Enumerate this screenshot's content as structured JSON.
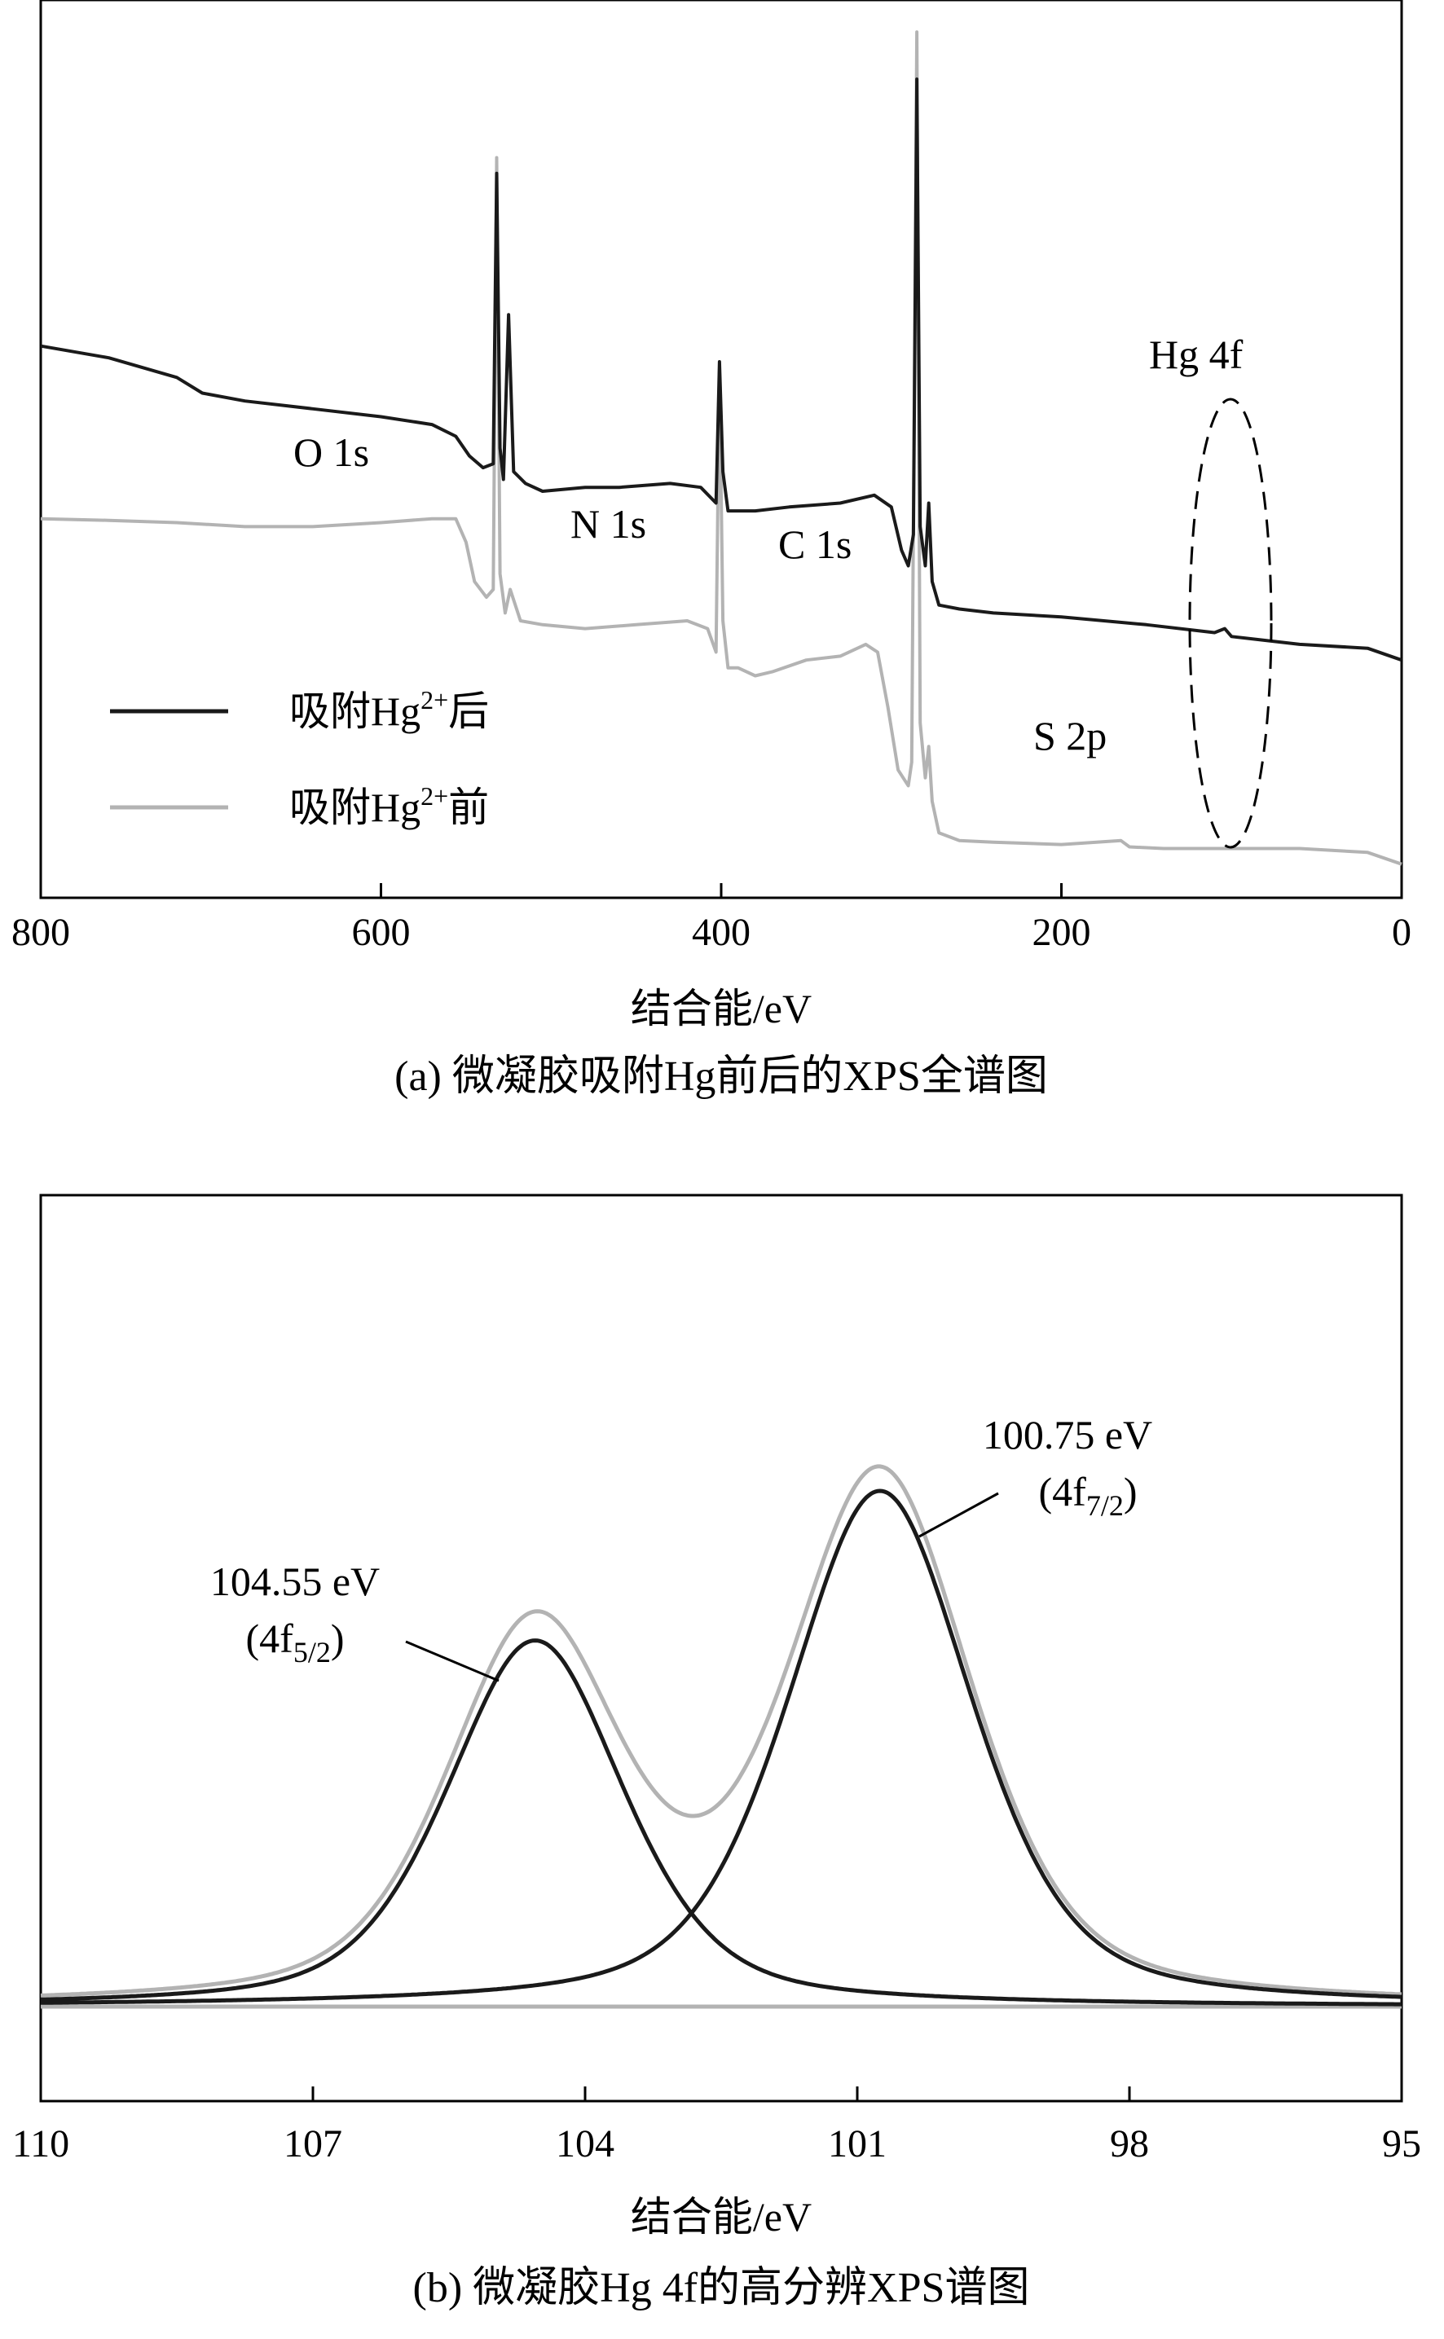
{
  "chart_data": [
    {
      "type": "line",
      "caption": "(a) 微凝胶吸附Hg前后的XPS全谱图",
      "xlabel": "结合能/eV",
      "ylabel": "",
      "xlim": [
        800,
        0
      ],
      "x_reversed": true,
      "xticks": [
        800,
        600,
        400,
        200,
        0
      ],
      "y_ticks_shown": false,
      "legend_placement": "left",
      "series": [
        {
          "name": "吸附Hg²⁺后",
          "color": "#1a1a1a",
          "points": [
            [
              800,
              0.68
            ],
            [
              760,
              0.665
            ],
            [
              720,
              0.64
            ],
            [
              705,
              0.62
            ],
            [
              680,
              0.61
            ],
            [
              640,
              0.6
            ],
            [
              600,
              0.59
            ],
            [
              570,
              0.58
            ],
            [
              556,
              0.565
            ],
            [
              548,
              0.54
            ],
            [
              540,
              0.525
            ],
            [
              534,
              0.53
            ],
            [
              532,
              0.9
            ],
            [
              530,
              0.55
            ],
            [
              528,
              0.51
            ],
            [
              525,
              0.72
            ],
            [
              522,
              0.52
            ],
            [
              515,
              0.505
            ],
            [
              505,
              0.495
            ],
            [
              480,
              0.5
            ],
            [
              460,
              0.5
            ],
            [
              430,
              0.505
            ],
            [
              412,
              0.5
            ],
            [
              403,
              0.48
            ],
            [
              401,
              0.66
            ],
            [
              399,
              0.52
            ],
            [
              396,
              0.47
            ],
            [
              380,
              0.47
            ],
            [
              360,
              0.475
            ],
            [
              330,
              0.48
            ],
            [
              310,
              0.49
            ],
            [
              300,
              0.475
            ],
            [
              294,
              0.42
            ],
            [
              290,
              0.4
            ],
            [
              287,
              0.44
            ],
            [
              285,
              1.02
            ],
            [
              283,
              0.45
            ],
            [
              280,
              0.4
            ],
            [
              278,
              0.48
            ],
            [
              276,
              0.38
            ],
            [
              272,
              0.35
            ],
            [
              260,
              0.345
            ],
            [
              240,
              0.34
            ],
            [
              200,
              0.335
            ],
            [
              150,
              0.325
            ],
            [
              110,
              0.315
            ],
            [
              104,
              0.32
            ],
            [
              100,
              0.31
            ],
            [
              60,
              0.3
            ],
            [
              20,
              0.295
            ],
            [
              0,
              0.28
            ]
          ]
        },
        {
          "name": "吸附Hg²⁺前",
          "color": "#b3b3b3",
          "points": [
            [
              800,
              0.46
            ],
            [
              760,
              0.458
            ],
            [
              720,
              0.455
            ],
            [
              680,
              0.45
            ],
            [
              640,
              0.45
            ],
            [
              600,
              0.455
            ],
            [
              570,
              0.46
            ],
            [
              556,
              0.46
            ],
            [
              550,
              0.43
            ],
            [
              545,
              0.38
            ],
            [
              538,
              0.36
            ],
            [
              534,
              0.37
            ],
            [
              532,
              0.92
            ],
            [
              530,
              0.39
            ],
            [
              527,
              0.34
            ],
            [
              524,
              0.37
            ],
            [
              518,
              0.33
            ],
            [
              505,
              0.325
            ],
            [
              480,
              0.32
            ],
            [
              450,
              0.325
            ],
            [
              420,
              0.33
            ],
            [
              408,
              0.32
            ],
            [
              403,
              0.29
            ],
            [
              401,
              0.65
            ],
            [
              399,
              0.33
            ],
            [
              396,
              0.27
            ],
            [
              390,
              0.27
            ],
            [
              380,
              0.26
            ],
            [
              370,
              0.265
            ],
            [
              350,
              0.28
            ],
            [
              330,
              0.285
            ],
            [
              315,
              0.3
            ],
            [
              308,
              0.29
            ],
            [
              302,
              0.22
            ],
            [
              296,
              0.14
            ],
            [
              290,
              0.12
            ],
            [
              288,
              0.15
            ],
            [
              285,
              1.08
            ],
            [
              283,
              0.2
            ],
            [
              280,
              0.13
            ],
            [
              278,
              0.17
            ],
            [
              276,
              0.1
            ],
            [
              272,
              0.06
            ],
            [
              260,
              0.05
            ],
            [
              240,
              0.048
            ],
            [
              200,
              0.045
            ],
            [
              165,
              0.05
            ],
            [
              160,
              0.042
            ],
            [
              140,
              0.04
            ],
            [
              100,
              0.04
            ],
            [
              60,
              0.04
            ],
            [
              20,
              0.035
            ],
            [
              0,
              0.02
            ]
          ]
        }
      ],
      "annotations": [
        {
          "text": "O 1s",
          "x": 590
        },
        {
          "text": "N 1s",
          "x": 430
        },
        {
          "text": "C 1s",
          "x": 325
        },
        {
          "text": "S 2p",
          "x": 200
        },
        {
          "text": "Hg 4f",
          "x": 103,
          "marker": "dashed-ellipse"
        }
      ]
    },
    {
      "type": "line",
      "caption": "(b) 微凝胶Hg 4f的高分辨XPS谱图",
      "xlabel": "结合能/eV",
      "ylabel": "",
      "xlim": [
        110,
        95
      ],
      "x_reversed": true,
      "xticks": [
        110,
        107,
        104,
        101,
        98,
        95
      ],
      "y_ticks_shown": false,
      "series": [
        {
          "name": "",
          "color": "#b3b3b3",
          "description_of_curve": "envelope",
          "components": [
            [
              104.55,
              0.72
            ],
            [
              100.75,
              1.0
            ]
          ],
          "baseline": 0.0
        },
        {
          "name": "",
          "color": "#1a1a1a",
          "component": true,
          "center": 104.55,
          "height": 0.71,
          "fwhm": 2.3
        },
        {
          "name": "",
          "color": "#1a1a1a",
          "component": true,
          "center": 100.75,
          "height": 1.0,
          "fwhm": 2.4
        }
      ],
      "peaks": [
        {
          "center": 104.55,
          "label_line1": "104.55 eV",
          "label_line2_main": "(4f",
          "label_line2_sub": "5/2",
          "label_line2_end": ")"
        },
        {
          "center": 100.75,
          "label_line1": "100.75 eV",
          "label_line2_main": "(4f",
          "label_line2_sub": "7/2",
          "label_line2_end": ")"
        }
      ]
    }
  ],
  "legend": {
    "after_prefix": "吸附Hg",
    "after_sup": "2+",
    "after_suffix": "后",
    "before_prefix": "吸附Hg",
    "before_sup": "2+",
    "before_suffix": "前"
  }
}
